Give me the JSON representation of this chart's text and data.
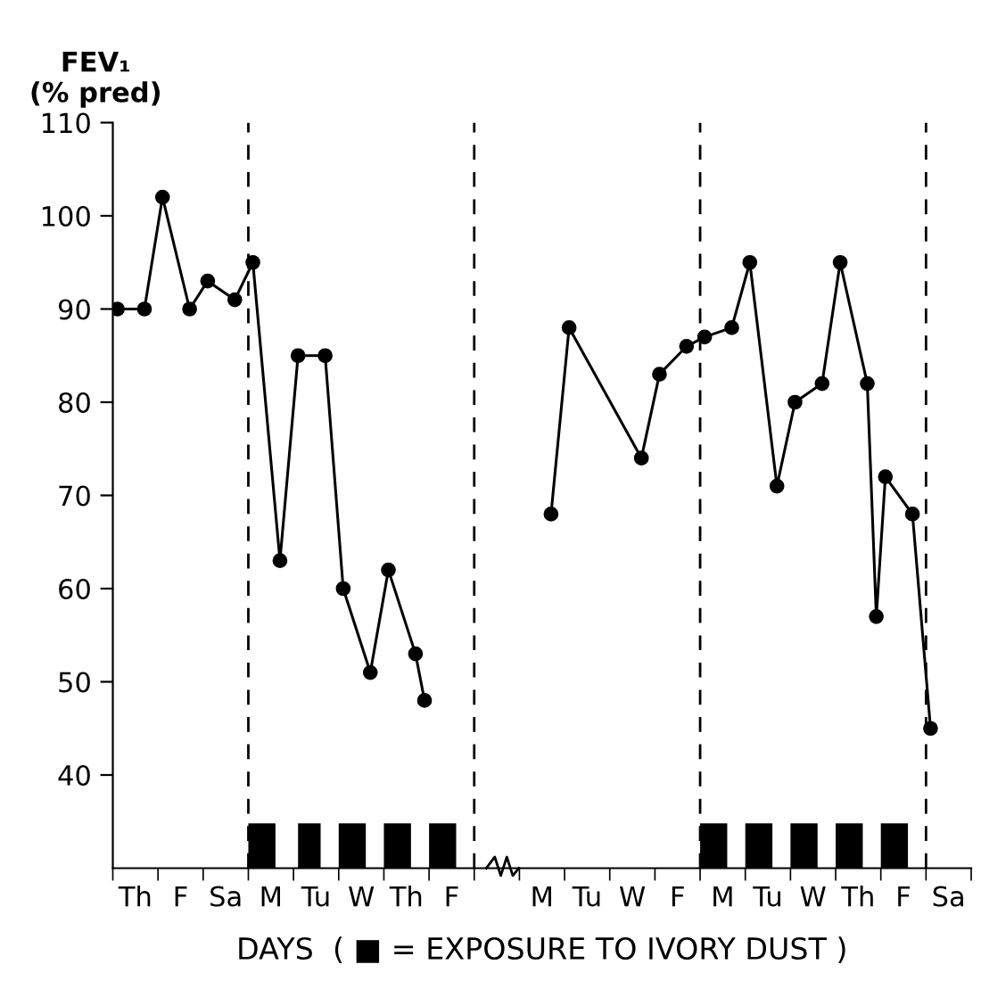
{
  "chart_data": {
    "type": "line",
    "ylabel": "FEV₁\n(% pred)",
    "xlabel": "DAYS  ( ■ = EXPOSURE TO IVORY DUST )",
    "categories": [
      null,
      null,
      "Th",
      null,
      null,
      null,
      null,
      "F",
      null,
      null,
      null,
      null,
      "Sa",
      null,
      null,
      null,
      null,
      "M",
      null,
      null,
      null,
      null,
      "Tu",
      null,
      null,
      null,
      null,
      "W",
      null,
      null,
      null,
      null,
      "Th",
      null,
      null,
      null,
      null,
      "F",
      null,
      null,
      null,
      null,
      null,
      null,
      null,
      null,
      null,
      "M",
      null,
      null,
      null,
      null,
      "Tu",
      null,
      null,
      null,
      null,
      "W",
      null,
      null,
      null,
      null,
      "F",
      null,
      null,
      null,
      null,
      "M",
      null,
      null,
      null,
      null,
      "Tu",
      null,
      null,
      null,
      null,
      "W",
      null,
      null,
      null,
      null,
      "Th",
      null,
      null,
      null,
      null,
      "F",
      null,
      null,
      null,
      null,
      "Sa",
      null,
      null
    ],
    "series": [
      {
        "color": "#000000",
        "values": [
          90,
          null,
          null,
          90,
          null,
          102,
          null,
          null,
          90,
          null,
          93,
          null,
          null,
          91,
          null,
          95,
          null,
          null,
          63,
          null,
          85,
          null,
          null,
          85,
          null,
          60,
          null,
          null,
          51,
          null,
          62,
          null,
          null,
          53,
          48,
          null,
          null,
          null,
          null,
          null,
          null,
          null,
          null,
          null,
          null,
          null,
          null,
          null,
          null,
          null,
          null,
          null,
          null,
          null,
          null,
          null,
          null,
          null,
          null,
          null,
          null,
          null,
          null,
          null,
          null,
          null,
          null,
          null,
          null,
          null,
          null,
          null,
          null,
          null,
          null,
          null,
          null,
          null,
          null,
          null,
          null,
          null,
          null,
          null,
          null,
          null,
          null,
          null,
          null,
          null,
          null,
          null,
          null,
          null,
          null
        ]
      },
      {
        "color": "#000000",
        "values": [
          null,
          null,
          null,
          null,
          null,
          null,
          null,
          null,
          null,
          null,
          null,
          null,
          null,
          null,
          null,
          null,
          null,
          null,
          null,
          null,
          null,
          null,
          null,
          null,
          null,
          null,
          null,
          null,
          null,
          null,
          null,
          null,
          null,
          null,
          null,
          null,
          null,
          null,
          null,
          null,
          null,
          null,
          null,
          null,
          null,
          null,
          null,
          null,
          68,
          null,
          88,
          null,
          null,
          null,
          null,
          null,
          null,
          null,
          74,
          null,
          83,
          null,
          null,
          86,
          null,
          87,
          null,
          null,
          88,
          null,
          95,
          null,
          null,
          71,
          null,
          80,
          null,
          null,
          82,
          null,
          95,
          null,
          null,
          82,
          57,
          72,
          null,
          null,
          68,
          null,
          45,
          null,
          null,
          null,
          null
        ]
      }
    ],
    "ylim": [
      30,
      110
    ],
    "yticks": [
      40,
      50,
      60,
      70,
      80,
      90,
      100,
      110
    ],
    "grid": false,
    "legend": false,
    "marker": "circle",
    "line_style": "solid"
  }
}
